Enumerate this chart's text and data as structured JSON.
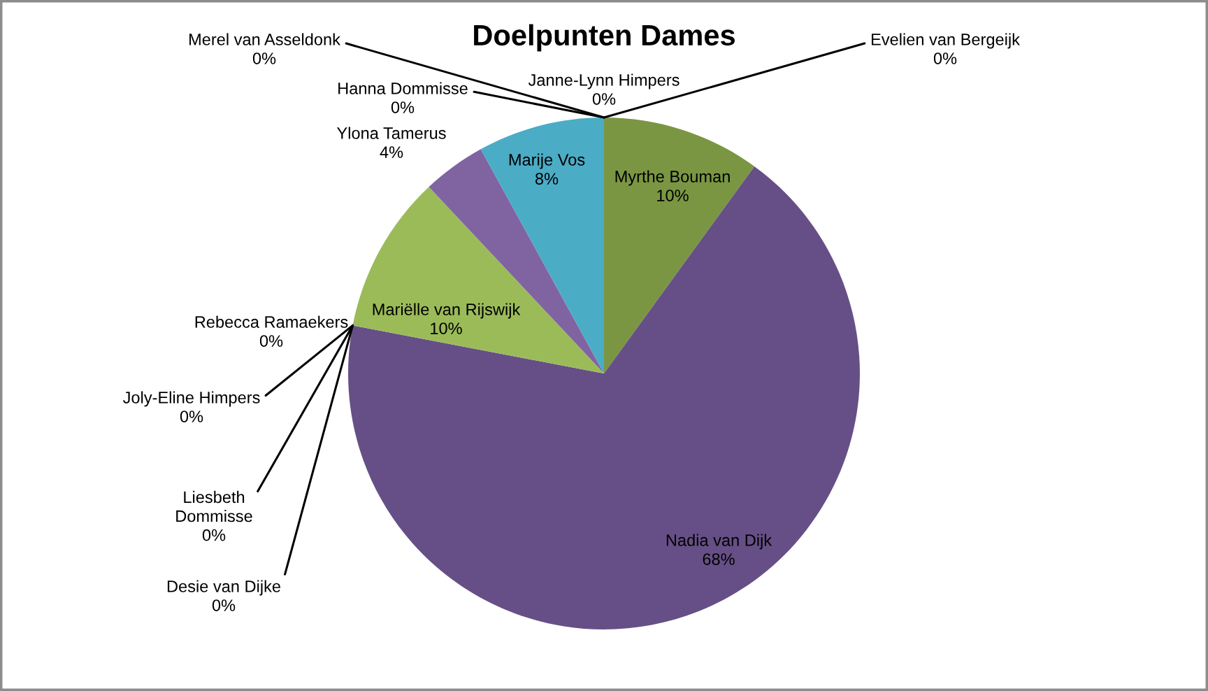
{
  "chart_data": {
    "type": "pie",
    "title": "Doelpunten Dames",
    "categories": [
      "Evelien van Bergeijk",
      "Myrthe Bouman",
      "Nadia van Dijk",
      "Desie van Dijke",
      "Liesbeth Dommisse",
      "Joly-Eline Himpers",
      "Rebecca Ramaekers",
      "Mariëlle van Rijswijk",
      "Ylona Tamerus",
      "Marije Vos",
      "Merel van Asseldonk",
      "Hanna Dommisse",
      "Janne-Lynn Himpers"
    ],
    "values": [
      0,
      10,
      68,
      0,
      0,
      0,
      0,
      10,
      4,
      8,
      0,
      0,
      0
    ],
    "colors": [
      null,
      "#7a9643",
      "#664f86",
      null,
      null,
      null,
      null,
      "#9bbb59",
      "#8064a2",
      "#4bacc6",
      null,
      null,
      null
    ],
    "value_labels": [
      "0%",
      "10%",
      "68%",
      "0%",
      "0%",
      "0%",
      "0%",
      "10%",
      "4%",
      "8%",
      "0%",
      "0%",
      "0%"
    ]
  }
}
